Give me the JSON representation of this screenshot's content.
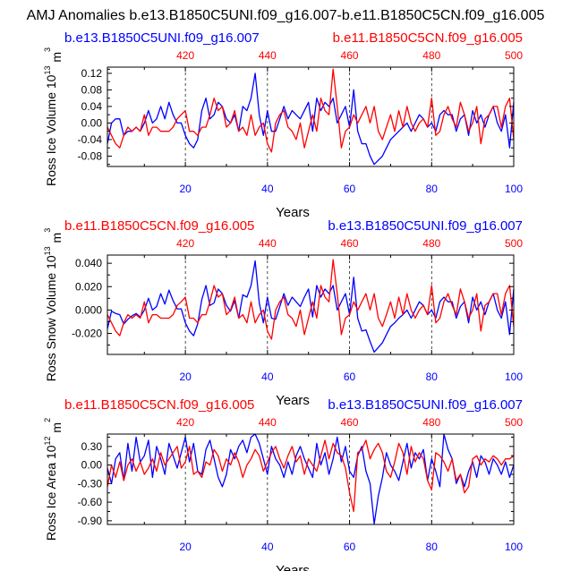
{
  "title": "AMJ Anomalies b.e13.B1850C5UNI.f09_g16.007-b.e11.B1850C5CN.f09_g16.005",
  "colors": {
    "blue": "#0000ff",
    "red": "#ff0000",
    "axis": "#000000",
    "grid": "#000000"
  },
  "chart_data": [
    {
      "type": "line",
      "title_left": "b.e13.B1850C5UNI.f09_g16.007",
      "title_left_color": "blue",
      "title_right": "b.e11.B1850C5CN.f09_g16.005",
      "title_right_color": "red",
      "ylabel": {
        "main": "Ross Ice Volume 10",
        "exp": "13",
        "unit": " m",
        "unit_exp": "3"
      },
      "xlabel": "Years",
      "ylim": [
        -0.105,
        0.135
      ],
      "xlim": [
        1,
        100
      ],
      "yticks": [
        -0.08,
        -0.06,
        -0.04,
        -0.02,
        0.0,
        0.02,
        0.04,
        0.06,
        0.08,
        0.1,
        0.12
      ],
      "yticks_minor": [
        -0.1,
        0.13
      ],
      "ytick_labels": [
        "-0.08",
        "-0.04",
        "0.00",
        "0.04",
        "0.08",
        "0.12"
      ],
      "xticks_bottom": [
        "20",
        "40",
        "60",
        "80",
        "100"
      ],
      "xticks_top": [
        "420",
        "440",
        "460",
        "480",
        "500"
      ],
      "top_year_offset": 400,
      "vlines": [
        20,
        40,
        60,
        80
      ],
      "series": [
        {
          "name": "b.e13.B1850C5UNI.f09_g16.007",
          "color": "blue",
          "values": [
            -0.05,
            0.0,
            0.01,
            0.01,
            -0.03,
            -0.02,
            -0.02,
            -0.01,
            -0.02,
            0.0,
            0.03,
            0.0,
            0.01,
            0.04,
            0.01,
            0.05,
            0.02,
            0.0,
            0.0,
            -0.03,
            -0.05,
            -0.06,
            -0.04,
            0.03,
            0.06,
            0.01,
            0.02,
            0.05,
            0.04,
            0.01,
            0.0,
            0.02,
            -0.02,
            0.04,
            0.03,
            0.06,
            0.12,
            0.02,
            -0.03,
            0.03,
            -0.02,
            -0.02,
            0.01,
            0.04,
            0.01,
            0.03,
            0.02,
            0.01,
            0.03,
            0.05,
            -0.02,
            0.06,
            0.03,
            0.05,
            0.04,
            0.06,
            0.0,
            0.02,
            0.04,
            -0.01,
            0.08,
            -0.02,
            -0.05,
            -0.05,
            -0.08,
            -0.1,
            -0.09,
            -0.08,
            -0.06,
            -0.04,
            -0.03,
            -0.02,
            -0.01,
            0.0,
            -0.02,
            0.0,
            0.02,
            0.01,
            -0.01,
            0.0,
            -0.02,
            0.02,
            0.03,
            0.02,
            0.02,
            -0.02,
            0.01,
            0.02,
            -0.03,
            0.03,
            0.0,
            0.02,
            -0.01,
            0.02,
            0.04,
            0.0,
            -0.02,
            0.02,
            -0.06,
            0.05
          ]
        },
        {
          "name": "b.e11.B1850C5CN.f09_g16.005",
          "color": "red",
          "values": [
            -0.01,
            -0.03,
            -0.05,
            -0.06,
            -0.03,
            -0.01,
            -0.02,
            -0.01,
            -0.02,
            0.02,
            -0.03,
            -0.01,
            -0.01,
            -0.02,
            -0.02,
            -0.02,
            -0.01,
            0.01,
            0.02,
            0.03,
            -0.02,
            -0.02,
            -0.03,
            -0.01,
            -0.01,
            0.02,
            0.06,
            0.03,
            0.04,
            -0.01,
            0.0,
            0.03,
            -0.02,
            -0.01,
            -0.03,
            0.02,
            -0.03,
            -0.01,
            0.0,
            -0.05,
            -0.07,
            0.0,
            0.02,
            0.03,
            -0.01,
            -0.02,
            -0.04,
            0.0,
            -0.06,
            -0.02,
            0.02,
            -0.02,
            0.06,
            0.03,
            0.02,
            0.13,
            0.04,
            -0.06,
            -0.02,
            -0.01,
            0.02,
            0.0,
            0.02,
            0.04,
            0.0,
            0.04,
            -0.02,
            -0.04,
            -0.01,
            0.02,
            -0.02,
            0.03,
            -0.01,
            0.04,
            0.0,
            -0.02,
            0.0,
            0.01,
            -0.01,
            0.06,
            -0.03,
            -0.02,
            0.02,
            0.04,
            0.01,
            -0.01,
            0.05,
            0.02,
            -0.02,
            0.0,
            0.04,
            -0.05,
            0.01,
            0.02,
            0.04,
            0.04,
            -0.01,
            0.04,
            0.06,
            -0.04
          ]
        }
      ]
    },
    {
      "type": "line",
      "title_left": "b.e11.B1850C5CN.f09_g16.005",
      "title_left_color": "red",
      "title_right": "b.e13.B1850C5UNI.f09_g16.007",
      "title_right_color": "blue",
      "ylabel": {
        "main": "Ross Snow Volume 10",
        "exp": "13",
        "unit": " m",
        "unit_exp": "3"
      },
      "xlabel": "Years",
      "ylim": [
        -0.038,
        0.047
      ],
      "xlim": [
        1,
        100
      ],
      "yticks": [
        -0.03,
        -0.02,
        -0.01,
        0.0,
        0.01,
        0.02,
        0.03,
        0.04
      ],
      "yticks_minor": [],
      "ytick_labels": [
        "-0.020",
        "0.000",
        "0.020",
        "0.040"
      ],
      "xticks_bottom": [
        "20",
        "40",
        "60",
        "80",
        "100"
      ],
      "xticks_top": [
        "420",
        "440",
        "460",
        "480",
        "500"
      ],
      "top_year_offset": 400,
      "vlines": [
        20,
        40,
        60,
        80
      ],
      "series": [
        {
          "name": "b.e13.B1850C5UNI.f09_g16.007",
          "color": "blue",
          "values": [
            -0.016,
            -0.001,
            -0.003,
            -0.004,
            -0.012,
            -0.008,
            -0.005,
            -0.003,
            -0.006,
            0.0,
            0.01,
            0.0,
            0.003,
            0.014,
            0.005,
            0.017,
            0.008,
            0.001,
            0.001,
            -0.011,
            -0.018,
            -0.022,
            -0.012,
            0.009,
            0.021,
            0.004,
            0.006,
            0.018,
            0.014,
            0.004,
            -0.001,
            0.008,
            -0.007,
            0.013,
            0.011,
            0.021,
            0.042,
            0.006,
            -0.011,
            0.011,
            -0.007,
            -0.008,
            0.003,
            0.014,
            0.004,
            0.011,
            0.007,
            0.003,
            0.011,
            0.018,
            -0.006,
            0.021,
            0.011,
            0.018,
            0.014,
            0.021,
            0.0,
            0.007,
            0.014,
            -0.004,
            0.028,
            -0.007,
            -0.018,
            -0.017,
            -0.027,
            -0.036,
            -0.032,
            -0.028,
            -0.021,
            -0.014,
            -0.011,
            -0.007,
            -0.004,
            0.0,
            -0.007,
            0.0,
            0.007,
            0.004,
            -0.004,
            0.0,
            -0.007,
            0.007,
            0.011,
            0.007,
            0.007,
            -0.007,
            0.003,
            0.007,
            -0.011,
            0.011,
            0.0,
            0.007,
            -0.004,
            0.007,
            0.014,
            0.0,
            -0.007,
            0.007,
            -0.021,
            0.018
          ]
        },
        {
          "name": "b.e11.B1850C5CN.f09_g16.005",
          "color": "red",
          "values": [
            -0.004,
            -0.011,
            -0.018,
            -0.022,
            -0.011,
            -0.004,
            -0.007,
            -0.004,
            -0.007,
            0.007,
            -0.011,
            -0.004,
            -0.004,
            -0.007,
            -0.007,
            -0.007,
            -0.004,
            0.004,
            0.007,
            0.011,
            -0.007,
            -0.007,
            -0.011,
            -0.004,
            -0.004,
            0.007,
            0.021,
            0.011,
            0.014,
            -0.004,
            0.0,
            0.011,
            -0.007,
            -0.004,
            -0.011,
            0.007,
            -0.011,
            -0.004,
            0.0,
            -0.018,
            -0.025,
            0.0,
            0.007,
            0.011,
            -0.004,
            -0.007,
            -0.014,
            0.0,
            -0.021,
            -0.007,
            0.007,
            -0.007,
            0.021,
            0.011,
            0.007,
            0.043,
            0.014,
            -0.021,
            -0.007,
            -0.004,
            0.007,
            0.0,
            0.007,
            0.014,
            0.0,
            0.014,
            -0.007,
            -0.014,
            -0.004,
            0.007,
            -0.007,
            0.011,
            -0.004,
            0.014,
            0.0,
            -0.007,
            0.0,
            0.004,
            -0.004,
            0.021,
            -0.011,
            -0.007,
            0.007,
            0.014,
            0.004,
            -0.004,
            0.018,
            0.007,
            -0.007,
            0.0,
            0.014,
            -0.018,
            0.004,
            0.007,
            0.014,
            0.014,
            -0.004,
            0.014,
            0.021,
            -0.014
          ]
        }
      ]
    },
    {
      "type": "line",
      "title_left": "b.e11.B1850C5CN.f09_g16.005",
      "title_left_color": "red",
      "title_right": "b.e13.B1850C5UNI.f09_g16.007",
      "title_right_color": "blue",
      "ylabel": {
        "main": "Ross Ice Area 10",
        "exp": "12",
        "unit": " m",
        "unit_exp": "2"
      },
      "xlabel": "Years",
      "ylim": [
        -0.96,
        0.5
      ],
      "xlim": [
        1,
        100
      ],
      "yticks": [
        -0.9,
        -0.75,
        -0.6,
        -0.45,
        -0.3,
        -0.15,
        0.0,
        0.15,
        0.3,
        0.45
      ],
      "yticks_minor": [],
      "ytick_labels": [
        "-0.90",
        "-0.60",
        "-0.30",
        "0.00",
        "0.30"
      ],
      "xticks_bottom": [
        "20",
        "40",
        "60",
        "80",
        "100"
      ],
      "xticks_top": [
        "420",
        "440",
        "460",
        "480",
        "500"
      ],
      "top_year_offset": 400,
      "vlines": [
        20,
        40,
        60,
        80
      ],
      "series": [
        {
          "name": "b.e13.B1850C5UNI.f09_g16.007",
          "color": "blue",
          "values": [
            -0.05,
            -0.3,
            0.1,
            0.2,
            -0.25,
            0.35,
            -0.1,
            0.45,
            0.05,
            0.15,
            0.4,
            -0.2,
            0.3,
            0.1,
            -0.15,
            0.35,
            0.15,
            -0.05,
            0.2,
            0.45,
            0.05,
            0.35,
            -0.1,
            -0.15,
            0.25,
            0.4,
            0.1,
            -0.2,
            -0.35,
            -0.15,
            0.25,
            0.1,
            0.3,
            0.4,
            0.2,
            0.45,
            0.5,
            0.35,
            0.1,
            -0.15,
            0.3,
            0.1,
            0.0,
            -0.2,
            0.05,
            -0.15,
            0.15,
            0.3,
            0.1,
            -0.05,
            -0.2,
            0.35,
            0.0,
            0.2,
            -0.15,
            0.1,
            0.45,
            0.05,
            0.3,
            -0.1,
            -0.2,
            0.15,
            0.3,
            -0.1,
            -0.3,
            -0.95,
            -0.5,
            -0.2,
            0.2,
            0.0,
            -0.1,
            -0.25,
            0.05,
            0.35,
            -0.05,
            0.2,
            0.1,
            0.25,
            -0.25,
            0.1,
            -0.1,
            -0.35,
            0.5,
            0.25,
            0.1,
            -0.3,
            -0.15,
            -0.35,
            -0.1,
            0.05,
            -0.2,
            0.15,
            0.05,
            -0.15,
            0.1,
            0.0,
            -0.15,
            0.05,
            -0.2,
            0.0
          ]
        },
        {
          "name": "b.e11.B1850C5CN.f09_g16.005",
          "color": "red",
          "values": [
            -0.35,
            0.0,
            -0.2,
            0.05,
            -0.25,
            0.0,
            0.1,
            -0.1,
            0.05,
            -0.15,
            -0.05,
            0.1,
            -0.1,
            0.2,
            0.0,
            0.1,
            0.2,
            0.3,
            -0.05,
            0.05,
            0.3,
            -0.15,
            -0.1,
            -0.2,
            0.05,
            0.0,
            0.25,
            0.15,
            -0.1,
            0.1,
            0.0,
            0.2,
            0.05,
            -0.2,
            0.0,
            0.1,
            0.25,
            0.15,
            -0.1,
            0.05,
            0.2,
            0.3,
            0.1,
            -0.05,
            0.15,
            0.3,
            0.05,
            0.15,
            -0.15,
            0.1,
            0.0,
            -0.1,
            0.15,
            0.4,
            0.1,
            0.35,
            0.2,
            0.15,
            -0.05,
            -0.45,
            -0.75,
            0.2,
            0.25,
            0.4,
            0.1,
            0.25,
            0.35,
            0.2,
            -0.1,
            -0.2,
            0.05,
            0.35,
            0.2,
            -0.15,
            0.3,
            0.05,
            0.2,
            0.1,
            -0.25,
            -0.4,
            0.2,
            0.15,
            0.05,
            -0.1,
            0.1,
            -0.25,
            -0.15,
            -0.45,
            -0.35,
            0.1,
            0.15,
            0.0,
            0.1,
            0.05,
            0.15,
            0.1,
            0.0,
            0.1,
            0.1,
            0.15
          ]
        }
      ]
    }
  ]
}
